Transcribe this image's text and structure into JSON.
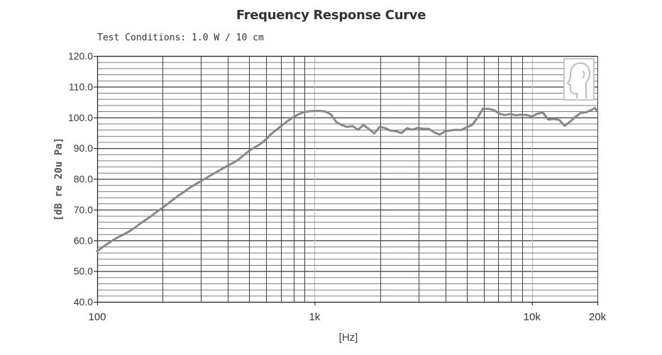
{
  "title": "Frequency Response Curve",
  "test_conditions": "Test Conditions: 1.0 W / 10 cm",
  "chart_data": {
    "type": "line",
    "title": "Frequency Response Curve",
    "subtitle": "Test Conditions: 1.0 W / 10 cm",
    "xlabel": "[Hz]",
    "ylabel": "[dB re 20u Pa]",
    "x_scale": "log",
    "xlim": [
      100,
      20000
    ],
    "ylim": [
      40,
      120
    ],
    "grid": true,
    "x_ticks": [
      {
        "value": 100,
        "label": "100"
      },
      {
        "value": 1000,
        "label": "1k"
      },
      {
        "value": 10000,
        "label": "10k"
      },
      {
        "value": 20000,
        "label": "20k"
      }
    ],
    "y_ticks": [
      {
        "value": 40,
        "label": "40.0"
      },
      {
        "value": 50,
        "label": "50.0"
      },
      {
        "value": 60,
        "label": "60.0"
      },
      {
        "value": 70,
        "label": "70.0"
      },
      {
        "value": 80,
        "label": "80.0"
      },
      {
        "value": 90,
        "label": "90.0"
      },
      {
        "value": 100,
        "label": "100.0"
      },
      {
        "value": 110,
        "label": "110.0"
      },
      {
        "value": 120,
        "label": "120.0"
      }
    ],
    "series": [
      {
        "color": "#888888",
        "points": [
          [
            100,
            56.5
          ],
          [
            106,
            57.8
          ],
          [
            112,
            59.0
          ],
          [
            119,
            60.2
          ],
          [
            126,
            61.2
          ],
          [
            133,
            62.0
          ],
          [
            141,
            63.0
          ],
          [
            150,
            64.3
          ],
          [
            158,
            65.5
          ],
          [
            168,
            66.8
          ],
          [
            178,
            68.0
          ],
          [
            188,
            69.3
          ],
          [
            200,
            70.6
          ],
          [
            211,
            71.9
          ],
          [
            224,
            73.3
          ],
          [
            237,
            74.6
          ],
          [
            251,
            75.8
          ],
          [
            266,
            77.1
          ],
          [
            282,
            78.2
          ],
          [
            299,
            79.2
          ],
          [
            316,
            80.2
          ],
          [
            335,
            81.3
          ],
          [
            355,
            82.3
          ],
          [
            376,
            83.3
          ],
          [
            398,
            84.3
          ],
          [
            422,
            85.2
          ],
          [
            447,
            86.3
          ],
          [
            473,
            87.8
          ],
          [
            501,
            89.2
          ],
          [
            531,
            90.3
          ],
          [
            562,
            91.3
          ],
          [
            596,
            92.8
          ],
          [
            631,
            94.6
          ],
          [
            668,
            96.0
          ],
          [
            708,
            97.4
          ],
          [
            750,
            98.8
          ],
          [
            794,
            100.0
          ],
          [
            841,
            101.0
          ],
          [
            891,
            101.7
          ],
          [
            944,
            102.0
          ],
          [
            1000,
            102.1
          ],
          [
            1059,
            102.1
          ],
          [
            1122,
            101.9
          ],
          [
            1189,
            101.0
          ],
          [
            1259,
            98.5
          ],
          [
            1334,
            97.5
          ],
          [
            1413,
            96.9
          ],
          [
            1496,
            97.2
          ],
          [
            1585,
            96.0
          ],
          [
            1679,
            97.6
          ],
          [
            1778,
            96.2
          ],
          [
            1884,
            94.8
          ],
          [
            1995,
            97.0
          ],
          [
            2113,
            96.5
          ],
          [
            2239,
            95.7
          ],
          [
            2371,
            95.5
          ],
          [
            2512,
            94.9
          ],
          [
            2661,
            96.5
          ],
          [
            2818,
            96.0
          ],
          [
            2985,
            96.6
          ],
          [
            3162,
            96.3
          ],
          [
            3350,
            96.3
          ],
          [
            3548,
            95.2
          ],
          [
            3758,
            94.4
          ],
          [
            3981,
            95.5
          ],
          [
            4217,
            95.8
          ],
          [
            4467,
            96.0
          ],
          [
            4732,
            95.9
          ],
          [
            5012,
            96.8
          ],
          [
            5309,
            97.6
          ],
          [
            5623,
            100.0
          ],
          [
            5957,
            102.9
          ],
          [
            6310,
            102.8
          ],
          [
            6683,
            102.4
          ],
          [
            7079,
            101.2
          ],
          [
            7499,
            100.8
          ],
          [
            7943,
            101.1
          ],
          [
            8414,
            100.7
          ],
          [
            8913,
            100.9
          ],
          [
            9441,
            100.8
          ],
          [
            10000,
            100.3
          ],
          [
            10593,
            101.2
          ],
          [
            11220,
            101.6
          ],
          [
            11885,
            99.3
          ],
          [
            12589,
            99.5
          ],
          [
            13335,
            99.2
          ],
          [
            14125,
            97.3
          ],
          [
            14962,
            98.6
          ],
          [
            15849,
            100.2
          ],
          [
            16788,
            101.5
          ],
          [
            17783,
            101.7
          ],
          [
            18836,
            102.5
          ],
          [
            19500,
            103.1
          ],
          [
            20000,
            102.0
          ]
        ]
      }
    ]
  },
  "icons": {
    "watermark": "head-profile-icon"
  }
}
